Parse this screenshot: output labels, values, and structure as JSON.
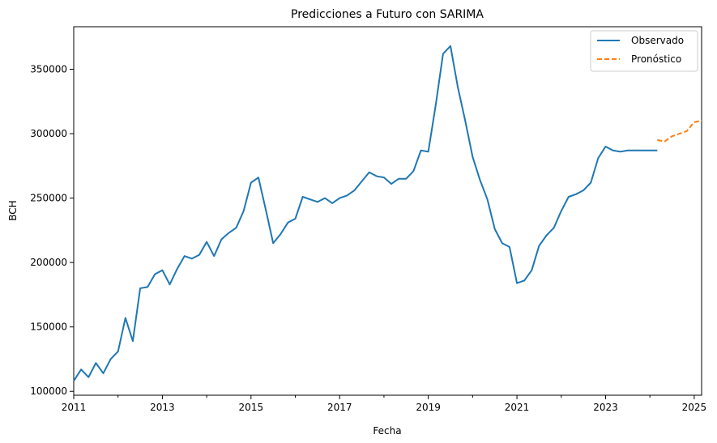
{
  "chart_data": {
    "type": "line",
    "title": "Predicciones a Futuro con SARIMA",
    "xlabel": "Fecha",
    "ylabel": "BCH",
    "xlim": [
      "2011-01",
      "2025-03"
    ],
    "ylim": [
      97000,
      383000
    ],
    "x_ticks": [
      "2011",
      "2013",
      "2015",
      "2017",
      "2019",
      "2021",
      "2023",
      "2025"
    ],
    "y_ticks": [
      100000,
      150000,
      200000,
      250000,
      300000,
      350000
    ],
    "y_tick_labels": [
      "100000",
      "150000",
      "200000",
      "250000",
      "300000",
      "350000"
    ],
    "grid": false,
    "legend_position": "top-right",
    "series": [
      {
        "name": "Observado",
        "color": "#1f77b4",
        "style": "solid",
        "x": [
          "2011-01",
          "2011-03",
          "2011-05",
          "2011-07",
          "2011-09",
          "2011-11",
          "2012-01",
          "2012-03",
          "2012-05",
          "2012-07",
          "2012-09",
          "2012-11",
          "2013-01",
          "2013-03",
          "2013-05",
          "2013-07",
          "2013-09",
          "2013-11",
          "2014-01",
          "2014-03",
          "2014-05",
          "2014-07",
          "2014-09",
          "2014-11",
          "2015-01",
          "2015-03",
          "2015-05",
          "2015-07",
          "2015-09",
          "2015-11",
          "2016-01",
          "2016-03",
          "2016-05",
          "2016-07",
          "2016-09",
          "2016-11",
          "2017-01",
          "2017-03",
          "2017-05",
          "2017-07",
          "2017-09",
          "2017-11",
          "2018-01",
          "2018-03",
          "2018-05",
          "2018-07",
          "2018-09",
          "2018-11",
          "2019-01",
          "2019-03",
          "2019-05",
          "2019-07",
          "2019-09",
          "2019-11",
          "2020-01",
          "2020-03",
          "2020-05",
          "2020-07",
          "2020-09",
          "2020-11",
          "2021-01",
          "2021-03",
          "2021-05",
          "2021-07",
          "2021-09",
          "2021-11",
          "2022-01",
          "2022-03",
          "2022-05",
          "2022-07",
          "2022-09",
          "2022-11",
          "2023-01",
          "2023-03",
          "2023-05",
          "2023-07",
          "2023-09",
          "2023-11",
          "2024-01",
          "2024-03"
        ],
        "values": [
          108000,
          117000,
          111000,
          122000,
          114000,
          125000,
          131000,
          157000,
          139000,
          180000,
          181000,
          191000,
          194000,
          183000,
          195000,
          205000,
          203000,
          206000,
          216000,
          205000,
          218000,
          223000,
          227000,
          240000,
          262000,
          266000,
          241000,
          215000,
          222000,
          231000,
          234000,
          251000,
          249000,
          247000,
          250000,
          246000,
          250000,
          252000,
          256000,
          263000,
          270000,
          267000,
          266000,
          261000,
          265000,
          265000,
          271000,
          287000,
          286000,
          322000,
          362000,
          368000,
          336000,
          310000,
          282000,
          264000,
          249000,
          226000,
          215000,
          212000,
          184000,
          186000,
          194000,
          213000,
          221000,
          227000,
          240000,
          251000,
          253000,
          256000,
          262000,
          281000,
          290000,
          287000,
          286000,
          287000,
          287000,
          287000,
          287000,
          287000
        ]
      },
      {
        "name": "Pronóstico",
        "color": "#ff7f0e",
        "style": "dashed",
        "x": [
          "2024-03",
          "2024-05",
          "2024-07",
          "2024-09",
          "2024-11",
          "2025-01",
          "2025-03"
        ],
        "values": [
          295000,
          294000,
          298000,
          300000,
          302000,
          309000,
          310000
        ]
      }
    ]
  }
}
